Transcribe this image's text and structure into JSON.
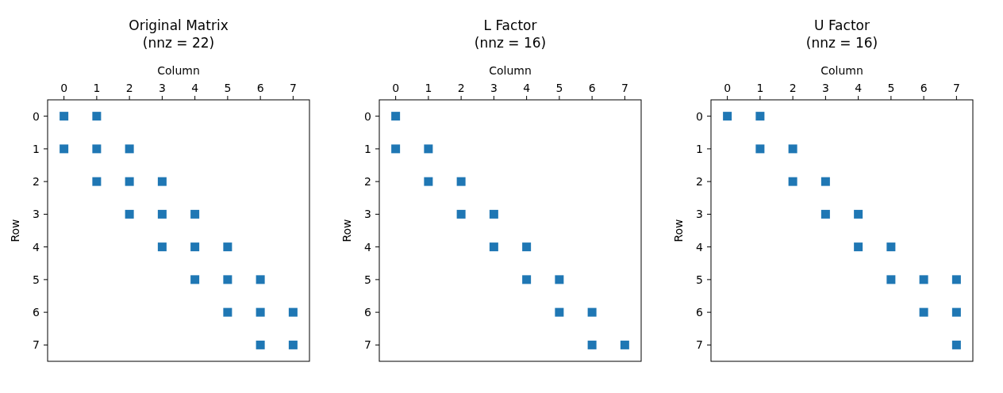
{
  "chart_data": [
    {
      "type": "scatter",
      "title": "Original Matrix\n(nnz = 22)",
      "xlabel": "Column",
      "ylabel": "Row",
      "xlim": [
        -0.5,
        7.5
      ],
      "ylim": [
        7.5,
        -0.5
      ],
      "xticks": [
        0,
        1,
        2,
        3,
        4,
        5,
        6,
        7
      ],
      "yticks": [
        0,
        1,
        2,
        3,
        4,
        5,
        6,
        7
      ],
      "marker": "square",
      "grid": false,
      "series": [
        {
          "color": "#1f77b4",
          "x": [
            0,
            1,
            0,
            1,
            2,
            1,
            2,
            3,
            2,
            3,
            4,
            3,
            4,
            5,
            4,
            5,
            6,
            5,
            6,
            7,
            6,
            7
          ],
          "values": [
            0,
            0,
            1,
            1,
            1,
            2,
            2,
            2,
            3,
            3,
            3,
            4,
            4,
            4,
            5,
            5,
            5,
            6,
            6,
            6,
            7,
            7
          ]
        }
      ]
    },
    {
      "type": "scatter",
      "title": "L Factor\n(nnz = 16)",
      "xlabel": "Column",
      "ylabel": "Row",
      "xlim": [
        -0.5,
        7.5
      ],
      "ylim": [
        7.5,
        -0.5
      ],
      "xticks": [
        0,
        1,
        2,
        3,
        4,
        5,
        6,
        7
      ],
      "yticks": [
        0,
        1,
        2,
        3,
        4,
        5,
        6,
        7
      ],
      "marker": "square",
      "grid": false,
      "series": [
        {
          "color": "#1f77b4",
          "x": [
            0,
            0,
            1,
            1,
            2,
            2,
            3,
            3,
            4,
            4,
            5,
            5,
            6,
            6,
            7
          ],
          "values": [
            0,
            1,
            1,
            2,
            2,
            3,
            3,
            4,
            4,
            5,
            5,
            6,
            6,
            7,
            7
          ]
        }
      ]
    },
    {
      "type": "scatter",
      "title": "U Factor\n(nnz = 16)",
      "xlabel": "Column",
      "ylabel": "Row",
      "xlim": [
        -0.5,
        7.5
      ],
      "ylim": [
        7.5,
        -0.5
      ],
      "xticks": [
        0,
        1,
        2,
        3,
        4,
        5,
        6,
        7
      ],
      "yticks": [
        0,
        1,
        2,
        3,
        4,
        5,
        6,
        7
      ],
      "marker": "square",
      "grid": false,
      "series": [
        {
          "color": "#1f77b4",
          "x": [
            0,
            1,
            1,
            2,
            2,
            3,
            3,
            4,
            4,
            5,
            5,
            6,
            7,
            6,
            7,
            7
          ],
          "values": [
            0,
            0,
            1,
            1,
            2,
            2,
            3,
            3,
            4,
            4,
            5,
            5,
            5,
            6,
            6,
            7
          ]
        }
      ]
    }
  ]
}
